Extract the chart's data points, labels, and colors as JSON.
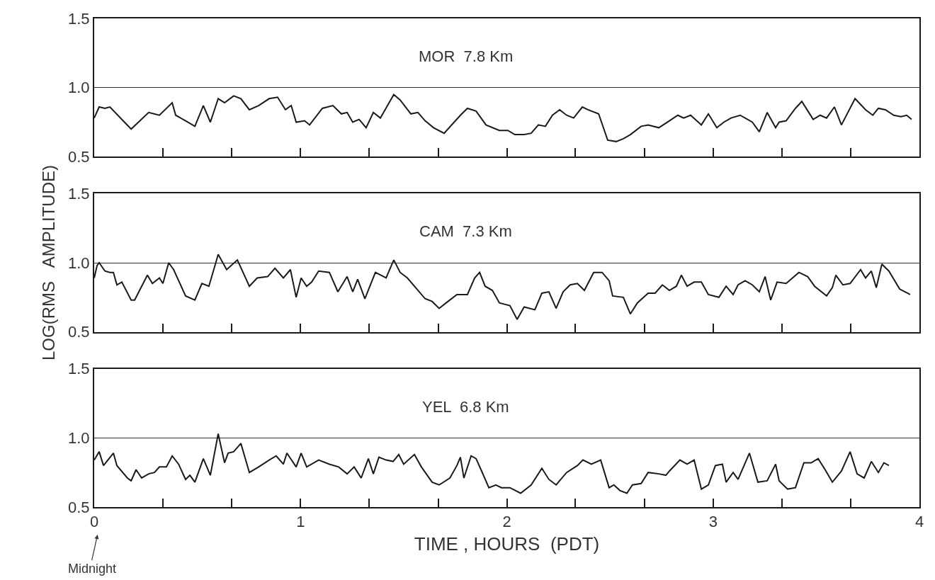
{
  "chart_data": [
    {
      "type": "line",
      "xlim": [
        0,
        4
      ],
      "ylim": [
        0.5,
        1.5
      ],
      "yticks": [
        {
          "value": 0.5,
          "label": "0.5"
        },
        {
          "value": 1.0,
          "label": "1.0"
        },
        {
          "value": 1.5,
          "label": "1.5"
        }
      ],
      "xticks": [
        0,
        {
          "value": 0.333,
          "label": null
        },
        {
          "value": 0.667,
          "label": null
        },
        1,
        {
          "value": 1.333,
          "label": null
        },
        {
          "value": 1.667,
          "label": null
        },
        2,
        {
          "value": 2.333,
          "label": null
        },
        {
          "value": 2.667,
          "label": null
        },
        3,
        {
          "value": 3.333,
          "label": null
        },
        {
          "value": 3.667,
          "label": null
        },
        4
      ],
      "tick_labels": "y",
      "grid": "y",
      "marker": "none",
      "line_style": "solid",
      "annotations": [
        "MOR  7.8 Km"
      ],
      "series": [
        {
          "color": "#1a1a1a",
          "x": [
            0,
            0.024,
            0.052,
            0.076,
            0.179,
            0.264,
            0.316,
            0.378,
            0.395,
            0.443,
            0.488,
            0.529,
            0.563,
            0.601,
            0.632,
            0.676,
            0.711,
            0.752,
            0.797,
            0.848,
            0.889,
            0.927,
            0.955,
            0.979,
            1.02,
            1.044,
            1.106,
            1.157,
            1.198,
            1.226,
            1.253,
            1.284,
            1.318,
            1.353,
            1.387,
            1.452,
            1.483,
            1.535,
            1.569,
            1.604,
            1.645,
            1.696,
            1.775,
            1.809,
            1.851,
            1.899,
            1.964,
            2.005,
            2.039,
            2.084,
            2.118,
            2.153,
            2.187,
            2.221,
            2.256,
            2.29,
            2.324,
            2.366,
            2.393,
            2.445,
            2.489,
            2.53,
            2.565,
            2.599,
            2.651,
            2.685,
            2.737,
            2.788,
            2.829,
            2.857,
            2.891,
            2.943,
            2.977,
            3.018,
            3.052,
            3.087,
            3.131,
            3.155,
            3.19,
            3.224,
            3.262,
            3.303,
            3.32,
            3.354,
            3.399,
            3.43,
            3.485,
            3.519,
            3.55,
            3.588,
            3.622,
            3.688,
            3.739,
            3.774,
            3.801,
            3.835,
            3.876,
            3.911,
            3.938,
            3.962
          ],
          "values": [
            0.78,
            0.86,
            0.85,
            0.86,
            0.7,
            0.82,
            0.8,
            0.89,
            0.8,
            0.76,
            0.72,
            0.87,
            0.75,
            0.92,
            0.89,
            0.94,
            0.92,
            0.84,
            0.87,
            0.92,
            0.93,
            0.84,
            0.87,
            0.75,
            0.76,
            0.73,
            0.85,
            0.87,
            0.81,
            0.82,
            0.75,
            0.77,
            0.71,
            0.82,
            0.78,
            0.95,
            0.91,
            0.81,
            0.82,
            0.76,
            0.71,
            0.67,
            0.8,
            0.85,
            0.83,
            0.73,
            0.69,
            0.69,
            0.66,
            0.66,
            0.67,
            0.73,
            0.72,
            0.8,
            0.84,
            0.8,
            0.78,
            0.86,
            0.84,
            0.81,
            0.62,
            0.61,
            0.63,
            0.66,
            0.72,
            0.73,
            0.71,
            0.76,
            0.8,
            0.78,
            0.8,
            0.73,
            0.81,
            0.71,
            0.75,
            0.78,
            0.8,
            0.78,
            0.75,
            0.68,
            0.82,
            0.71,
            0.75,
            0.76,
            0.85,
            0.9,
            0.77,
            0.8,
            0.78,
            0.86,
            0.73,
            0.92,
            0.84,
            0.8,
            0.85,
            0.84,
            0.8,
            0.79,
            0.8,
            0.77
          ]
        }
      ]
    },
    {
      "type": "line",
      "xlim": [
        0,
        4
      ],
      "ylim": [
        0.5,
        1.5
      ],
      "yticks": [
        {
          "value": 0.5,
          "label": "0.5"
        },
        {
          "value": 1.0,
          "label": "1.0"
        },
        {
          "value": 1.5,
          "label": "1.5"
        }
      ],
      "xticks": [
        0,
        {
          "value": 0.333,
          "label": null
        },
        {
          "value": 0.667,
          "label": null
        },
        1,
        {
          "value": 1.333,
          "label": null
        },
        {
          "value": 1.667,
          "label": null
        },
        2,
        {
          "value": 2.333,
          "label": null
        },
        {
          "value": 2.667,
          "label": null
        },
        3,
        {
          "value": 3.333,
          "label": null
        },
        {
          "value": 3.667,
          "label": null
        },
        4
      ],
      "tick_labels": "y",
      "grid": "y",
      "marker": "none",
      "line_style": "solid",
      "ylabel": "LOG(RMS   AMPLITUDE)",
      "annotations": [
        "CAM  7.3 Km"
      ],
      "series": [
        {
          "color": "#1a1a1a",
          "x": [
            0,
            0.014,
            0.024,
            0.052,
            0.076,
            0.093,
            0.11,
            0.134,
            0.179,
            0.196,
            0.23,
            0.258,
            0.282,
            0.316,
            0.333,
            0.361,
            0.385,
            0.443,
            0.488,
            0.522,
            0.556,
            0.601,
            0.642,
            0.694,
            0.752,
            0.79,
            0.841,
            0.876,
            0.917,
            0.951,
            0.979,
            1.003,
            1.03,
            1.054,
            1.088,
            1.14,
            1.181,
            1.226,
            1.253,
            1.277,
            1.312,
            1.363,
            1.415,
            1.452,
            1.483,
            1.518,
            1.604,
            1.638,
            1.672,
            1.706,
            1.758,
            1.809,
            1.844,
            1.868,
            1.895,
            1.93,
            1.964,
            2.015,
            2.05,
            2.084,
            2.136,
            2.17,
            2.204,
            2.239,
            2.273,
            2.307,
            2.342,
            2.376,
            2.421,
            2.462,
            2.496,
            2.513,
            2.565,
            2.599,
            2.633,
            2.685,
            2.719,
            2.754,
            2.788,
            2.822,
            2.846,
            2.874,
            2.908,
            2.943,
            2.977,
            3.028,
            3.063,
            3.097,
            3.121,
            3.155,
            3.19,
            3.224,
            3.252,
            3.279,
            3.31,
            3.354,
            3.416,
            3.458,
            3.492,
            3.55,
            3.578,
            3.595,
            3.629,
            3.664,
            3.715,
            3.739,
            3.767,
            3.791,
            3.818,
            3.852,
            3.904,
            3.955
          ],
          "values": [
            0.89,
            0.98,
            1.0,
            0.94,
            0.93,
            0.93,
            0.84,
            0.86,
            0.73,
            0.73,
            0.83,
            0.91,
            0.85,
            0.89,
            0.85,
            1.0,
            0.95,
            0.76,
            0.73,
            0.85,
            0.83,
            1.06,
            0.95,
            1.02,
            0.83,
            0.89,
            0.9,
            0.96,
            0.89,
            0.95,
            0.75,
            0.89,
            0.83,
            0.86,
            0.94,
            0.93,
            0.79,
            0.9,
            0.79,
            0.88,
            0.74,
            0.93,
            0.89,
            1.02,
            0.93,
            0.89,
            0.74,
            0.72,
            0.67,
            0.71,
            0.77,
            0.77,
            0.89,
            0.93,
            0.83,
            0.8,
            0.71,
            0.69,
            0.59,
            0.68,
            0.66,
            0.78,
            0.79,
            0.67,
            0.79,
            0.84,
            0.85,
            0.8,
            0.93,
            0.93,
            0.87,
            0.76,
            0.75,
            0.63,
            0.71,
            0.78,
            0.78,
            0.84,
            0.8,
            0.83,
            0.91,
            0.83,
            0.86,
            0.86,
            0.77,
            0.75,
            0.83,
            0.77,
            0.84,
            0.87,
            0.84,
            0.79,
            0.9,
            0.73,
            0.86,
            0.85,
            0.93,
            0.9,
            0.83,
            0.76,
            0.82,
            0.91,
            0.84,
            0.85,
            0.95,
            0.89,
            0.94,
            0.82,
            0.99,
            0.94,
            0.81,
            0.77
          ]
        }
      ]
    },
    {
      "type": "line",
      "xlim": [
        0,
        4
      ],
      "ylim": [
        0.5,
        1.5
      ],
      "yticks": [
        {
          "value": 0.5,
          "label": "0.5"
        },
        {
          "value": 1.0,
          "label": "1.0"
        },
        {
          "value": 1.5,
          "label": "1.5"
        }
      ],
      "xticks": [
        0,
        {
          "value": 0.333,
          "label": null
        },
        {
          "value": 0.667,
          "label": null
        },
        1,
        {
          "value": 1.333,
          "label": null
        },
        {
          "value": 1.667,
          "label": null
        },
        2,
        {
          "value": 2.333,
          "label": null
        },
        {
          "value": 2.667,
          "label": null
        },
        3,
        {
          "value": 3.333,
          "label": null
        },
        {
          "value": 3.667,
          "label": null
        },
        4
      ],
      "grid": "y",
      "marker": "none",
      "line_style": "solid",
      "xlabel": "TIME , HOURS  (PDT)",
      "annotations": [
        "YEL  6.8 Km",
        "Midnight"
      ],
      "series": [
        {
          "color": "#1a1a1a",
          "x": [
            0,
            0.024,
            0.045,
            0.093,
            0.11,
            0.161,
            0.179,
            0.203,
            0.23,
            0.264,
            0.292,
            0.316,
            0.35,
            0.378,
            0.409,
            0.443,
            0.464,
            0.488,
            0.529,
            0.563,
            0.601,
            0.632,
            0.649,
            0.676,
            0.711,
            0.752,
            0.797,
            0.848,
            0.882,
            0.917,
            0.934,
            0.979,
            1.003,
            1.03,
            1.088,
            1.14,
            1.185,
            1.226,
            1.26,
            1.294,
            1.329,
            1.353,
            1.38,
            1.415,
            1.449,
            1.476,
            1.5,
            1.552,
            1.586,
            1.638,
            1.672,
            1.724,
            1.758,
            1.775,
            1.792,
            1.827,
            1.851,
            1.878,
            1.913,
            1.947,
            1.974,
            2.015,
            2.067,
            2.118,
            2.17,
            2.204,
            2.239,
            2.29,
            2.342,
            2.369,
            2.41,
            2.455,
            2.496,
            2.519,
            2.548,
            2.582,
            2.609,
            2.651,
            2.685,
            2.737,
            2.771,
            2.788,
            2.839,
            2.874,
            2.908,
            2.943,
            2.977,
            3.011,
            3.045,
            3.063,
            3.097,
            3.121,
            3.176,
            3.217,
            3.262,
            3.303,
            3.32,
            3.361,
            3.399,
            3.44,
            3.475,
            3.509,
            3.543,
            3.578,
            3.622,
            3.664,
            3.698,
            3.732,
            3.767,
            3.801,
            3.828,
            3.852
          ],
          "values": [
            0.84,
            0.9,
            0.8,
            0.89,
            0.8,
            0.71,
            0.69,
            0.77,
            0.71,
            0.74,
            0.75,
            0.79,
            0.79,
            0.87,
            0.81,
            0.7,
            0.73,
            0.68,
            0.85,
            0.73,
            1.03,
            0.82,
            0.89,
            0.9,
            0.96,
            0.75,
            0.79,
            0.84,
            0.87,
            0.81,
            0.89,
            0.79,
            0.89,
            0.79,
            0.84,
            0.81,
            0.79,
            0.74,
            0.79,
            0.71,
            0.85,
            0.74,
            0.86,
            0.84,
            0.83,
            0.88,
            0.81,
            0.88,
            0.79,
            0.68,
            0.66,
            0.71,
            0.8,
            0.86,
            0.71,
            0.87,
            0.85,
            0.76,
            0.64,
            0.66,
            0.64,
            0.64,
            0.6,
            0.66,
            0.78,
            0.7,
            0.66,
            0.75,
            0.8,
            0.84,
            0.81,
            0.84,
            0.64,
            0.66,
            0.62,
            0.6,
            0.66,
            0.67,
            0.75,
            0.74,
            0.73,
            0.76,
            0.84,
            0.81,
            0.84,
            0.63,
            0.66,
            0.8,
            0.81,
            0.68,
            0.75,
            0.7,
            0.89,
            0.68,
            0.69,
            0.81,
            0.69,
            0.63,
            0.64,
            0.82,
            0.82,
            0.85,
            0.77,
            0.68,
            0.76,
            0.9,
            0.74,
            0.71,
            0.83,
            0.75,
            0.82,
            0.8
          ]
        }
      ]
    }
  ]
}
